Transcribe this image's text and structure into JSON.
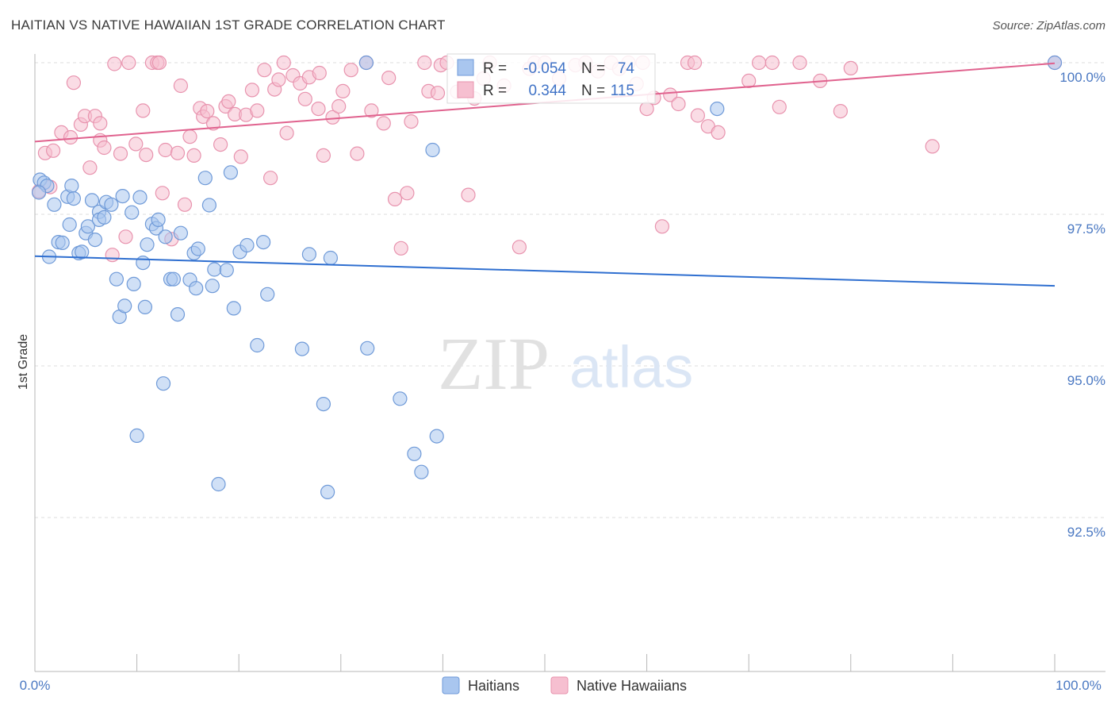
{
  "title": "HAITIAN VS NATIVE HAWAIIAN 1ST GRADE CORRELATION CHART",
  "source": "Source: ZipAtlas.com",
  "watermark": {
    "zip": "ZIP",
    "atlas": "atlas"
  },
  "colors": {
    "blue_fill": "#a9c6ef",
    "blue_stroke": "#6f9ad8",
    "blue_line": "#2f6fd0",
    "pink_fill": "#f6bfd0",
    "pink_stroke": "#e893ae",
    "pink_line": "#e0628e",
    "tick_text": "#4a78c2",
    "grid": "#dddddd"
  },
  "chart_data": {
    "type": "scatter",
    "title": "HAITIAN VS NATIVE HAWAIIAN 1ST GRADE CORRELATION CHART",
    "xlabel": "",
    "ylabel": "1st Grade",
    "xlim": [
      0,
      100
    ],
    "ylim": [
      90.0,
      100.35
    ],
    "x_tick_labels": [
      "0.0%",
      "100.0%"
    ],
    "y_ticks": [
      {
        "value": 100.0,
        "label": "100.0%"
      },
      {
        "value": 97.5,
        "label": "97.5%"
      },
      {
        "value": 95.0,
        "label": "95.0%"
      },
      {
        "value": 92.5,
        "label": "92.5%"
      }
    ],
    "stats_box": {
      "rows": [
        {
          "r_label": "R =",
          "r_value": "-0.054",
          "n_label": "N =",
          "n_value": "74"
        },
        {
          "r_label": "R =",
          "r_value": "0.344",
          "n_label": "N =",
          "n_value": "115"
        }
      ]
    },
    "legend": [
      "Haitians",
      "Native Hawaiians"
    ],
    "series": [
      {
        "name": "Haitians",
        "trend": {
          "x": [
            0,
            100
          ],
          "y": [
            96.81,
            96.32
          ]
        },
        "points": [
          [
            0.5,
            98.07
          ],
          [
            0.9,
            98.02
          ],
          [
            1.2,
            97.97
          ],
          [
            1.4,
            96.8
          ],
          [
            1.9,
            97.66
          ],
          [
            2.3,
            97.04
          ],
          [
            2.7,
            97.03
          ],
          [
            3.2,
            97.79
          ],
          [
            3.4,
            97.33
          ],
          [
            3.6,
            97.97
          ],
          [
            3.8,
            97.76
          ],
          [
            4.3,
            96.86
          ],
          [
            4.6,
            96.88
          ],
          [
            5.0,
            97.19
          ],
          [
            5.2,
            97.3
          ],
          [
            5.6,
            97.73
          ],
          [
            5.9,
            97.08
          ],
          [
            6.3,
            97.54
          ],
          [
            6.3,
            97.41
          ],
          [
            6.8,
            97.45
          ],
          [
            7.0,
            97.7
          ],
          [
            7.5,
            97.66
          ],
          [
            8.0,
            96.43
          ],
          [
            8.3,
            95.81
          ],
          [
            8.6,
            97.8
          ],
          [
            8.8,
            95.99
          ],
          [
            9.5,
            97.53
          ],
          [
            9.7,
            96.35
          ],
          [
            10.0,
            93.85
          ],
          [
            10.3,
            97.78
          ],
          [
            10.6,
            96.7
          ],
          [
            10.8,
            95.97
          ],
          [
            11.0,
            97.0
          ],
          [
            11.5,
            97.34
          ],
          [
            11.9,
            97.27
          ],
          [
            12.1,
            97.41
          ],
          [
            12.6,
            94.71
          ],
          [
            12.8,
            97.13
          ],
          [
            13.3,
            96.43
          ],
          [
            13.6,
            96.43
          ],
          [
            14.0,
            95.85
          ],
          [
            14.3,
            97.19
          ],
          [
            15.2,
            96.42
          ],
          [
            15.6,
            96.86
          ],
          [
            15.8,
            96.28
          ],
          [
            16.0,
            96.93
          ],
          [
            16.7,
            98.1
          ],
          [
            17.1,
            97.65
          ],
          [
            17.4,
            96.32
          ],
          [
            17.6,
            96.59
          ],
          [
            18.0,
            93.05
          ],
          [
            18.8,
            96.58
          ],
          [
            19.2,
            98.19
          ],
          [
            19.5,
            95.95
          ],
          [
            20.1,
            96.88
          ],
          [
            20.8,
            96.99
          ],
          [
            21.8,
            95.34
          ],
          [
            22.4,
            97.04
          ],
          [
            22.8,
            96.18
          ],
          [
            26.2,
            95.28
          ],
          [
            26.9,
            96.84
          ],
          [
            28.3,
            94.37
          ],
          [
            28.7,
            92.92
          ],
          [
            29.0,
            96.78
          ],
          [
            32.6,
            95.29
          ],
          [
            35.8,
            94.46
          ],
          [
            37.2,
            93.55
          ],
          [
            37.9,
            93.25
          ],
          [
            39.4,
            93.84
          ],
          [
            39.0,
            98.56
          ],
          [
            66.9,
            99.24
          ],
          [
            100.0,
            100.0
          ],
          [
            32.5,
            100.0
          ],
          [
            0.4,
            97.86
          ]
        ]
      },
      {
        "name": "Native Hawaiians",
        "trend": {
          "x": [
            0,
            100
          ],
          "y": [
            98.7,
            99.99
          ]
        },
        "points": [
          [
            0.4,
            97.88
          ],
          [
            1.0,
            98.51
          ],
          [
            1.5,
            97.95
          ],
          [
            1.8,
            98.55
          ],
          [
            2.6,
            98.85
          ],
          [
            3.5,
            98.77
          ],
          [
            3.8,
            99.67
          ],
          [
            4.5,
            98.98
          ],
          [
            4.9,
            99.12
          ],
          [
            5.4,
            98.27
          ],
          [
            5.9,
            99.12
          ],
          [
            6.4,
            98.72
          ],
          [
            6.8,
            98.6
          ],
          [
            7.6,
            96.83
          ],
          [
            7.8,
            99.98
          ],
          [
            8.4,
            98.5
          ],
          [
            8.9,
            97.13
          ],
          [
            9.2,
            100.0
          ],
          [
            9.9,
            98.66
          ],
          [
            10.6,
            99.21
          ],
          [
            10.9,
            98.48
          ],
          [
            11.5,
            100.0
          ],
          [
            12.0,
            100.0
          ],
          [
            12.5,
            97.85
          ],
          [
            12.8,
            98.56
          ],
          [
            13.4,
            97.09
          ],
          [
            14.0,
            98.51
          ],
          [
            14.3,
            99.62
          ],
          [
            14.7,
            97.66
          ],
          [
            15.2,
            98.78
          ],
          [
            15.6,
            98.47
          ],
          [
            16.2,
            99.25
          ],
          [
            16.5,
            99.11
          ],
          [
            16.9,
            99.2
          ],
          [
            17.5,
            99.0
          ],
          [
            18.2,
            98.65
          ],
          [
            18.7,
            99.28
          ],
          [
            19.0,
            99.36
          ],
          [
            19.6,
            99.15
          ],
          [
            20.2,
            98.45
          ],
          [
            20.7,
            99.14
          ],
          [
            21.3,
            99.55
          ],
          [
            21.8,
            99.21
          ],
          [
            22.5,
            99.88
          ],
          [
            23.1,
            98.1
          ],
          [
            23.5,
            99.56
          ],
          [
            23.9,
            99.72
          ],
          [
            24.4,
            100.0
          ],
          [
            24.7,
            98.84
          ],
          [
            25.3,
            99.79
          ],
          [
            26.0,
            99.66
          ],
          [
            26.5,
            99.4
          ],
          [
            26.9,
            99.76
          ],
          [
            27.8,
            99.24
          ],
          [
            28.3,
            98.47
          ],
          [
            29.2,
            99.1
          ],
          [
            29.8,
            99.28
          ],
          [
            30.2,
            99.53
          ],
          [
            31.0,
            99.88
          ],
          [
            31.6,
            98.5
          ],
          [
            32.5,
            100.0
          ],
          [
            33.0,
            99.21
          ],
          [
            34.2,
            99.0
          ],
          [
            34.7,
            99.75
          ],
          [
            35.3,
            97.75
          ],
          [
            35.9,
            96.94
          ],
          [
            36.5,
            97.85
          ],
          [
            36.9,
            99.03
          ],
          [
            38.2,
            100.0
          ],
          [
            38.6,
            99.53
          ],
          [
            39.5,
            99.5
          ],
          [
            39.8,
            99.96
          ],
          [
            40.4,
            100.0
          ],
          [
            41.4,
            99.52
          ],
          [
            42.5,
            97.82
          ],
          [
            43.1,
            99.41
          ],
          [
            44.0,
            99.74
          ],
          [
            44.6,
            100.0
          ],
          [
            46.0,
            99.62
          ],
          [
            47.5,
            96.96
          ],
          [
            49.0,
            100.0
          ],
          [
            50.0,
            100.0
          ],
          [
            51.4,
            99.74
          ],
          [
            53.0,
            99.96
          ],
          [
            54.0,
            100.0
          ],
          [
            55.2,
            99.86
          ],
          [
            56.5,
            100.0
          ],
          [
            57.3,
            99.9
          ],
          [
            58.2,
            100.0
          ],
          [
            59.0,
            99.65
          ],
          [
            59.6,
            100.0
          ],
          [
            60.0,
            99.24
          ],
          [
            60.7,
            99.42
          ],
          [
            61.5,
            97.3
          ],
          [
            62.3,
            99.47
          ],
          [
            63.1,
            99.32
          ],
          [
            64.0,
            100.0
          ],
          [
            65.0,
            99.13
          ],
          [
            66.0,
            98.95
          ],
          [
            67.0,
            98.85
          ],
          [
            70.0,
            99.7
          ],
          [
            71.0,
            100.0
          ],
          [
            73.0,
            99.27
          ],
          [
            75.0,
            100.0
          ],
          [
            77.0,
            99.7
          ],
          [
            79.0,
            99.2
          ],
          [
            80.0,
            99.91
          ],
          [
            88.0,
            98.62
          ],
          [
            100.0,
            100.0
          ],
          [
            72.3,
            100.0
          ],
          [
            64.7,
            100.0
          ],
          [
            48.5,
            99.9
          ],
          [
            12.2,
            100.0
          ],
          [
            27.9,
            99.83
          ],
          [
            6.4,
            99.0
          ]
        ]
      }
    ]
  }
}
